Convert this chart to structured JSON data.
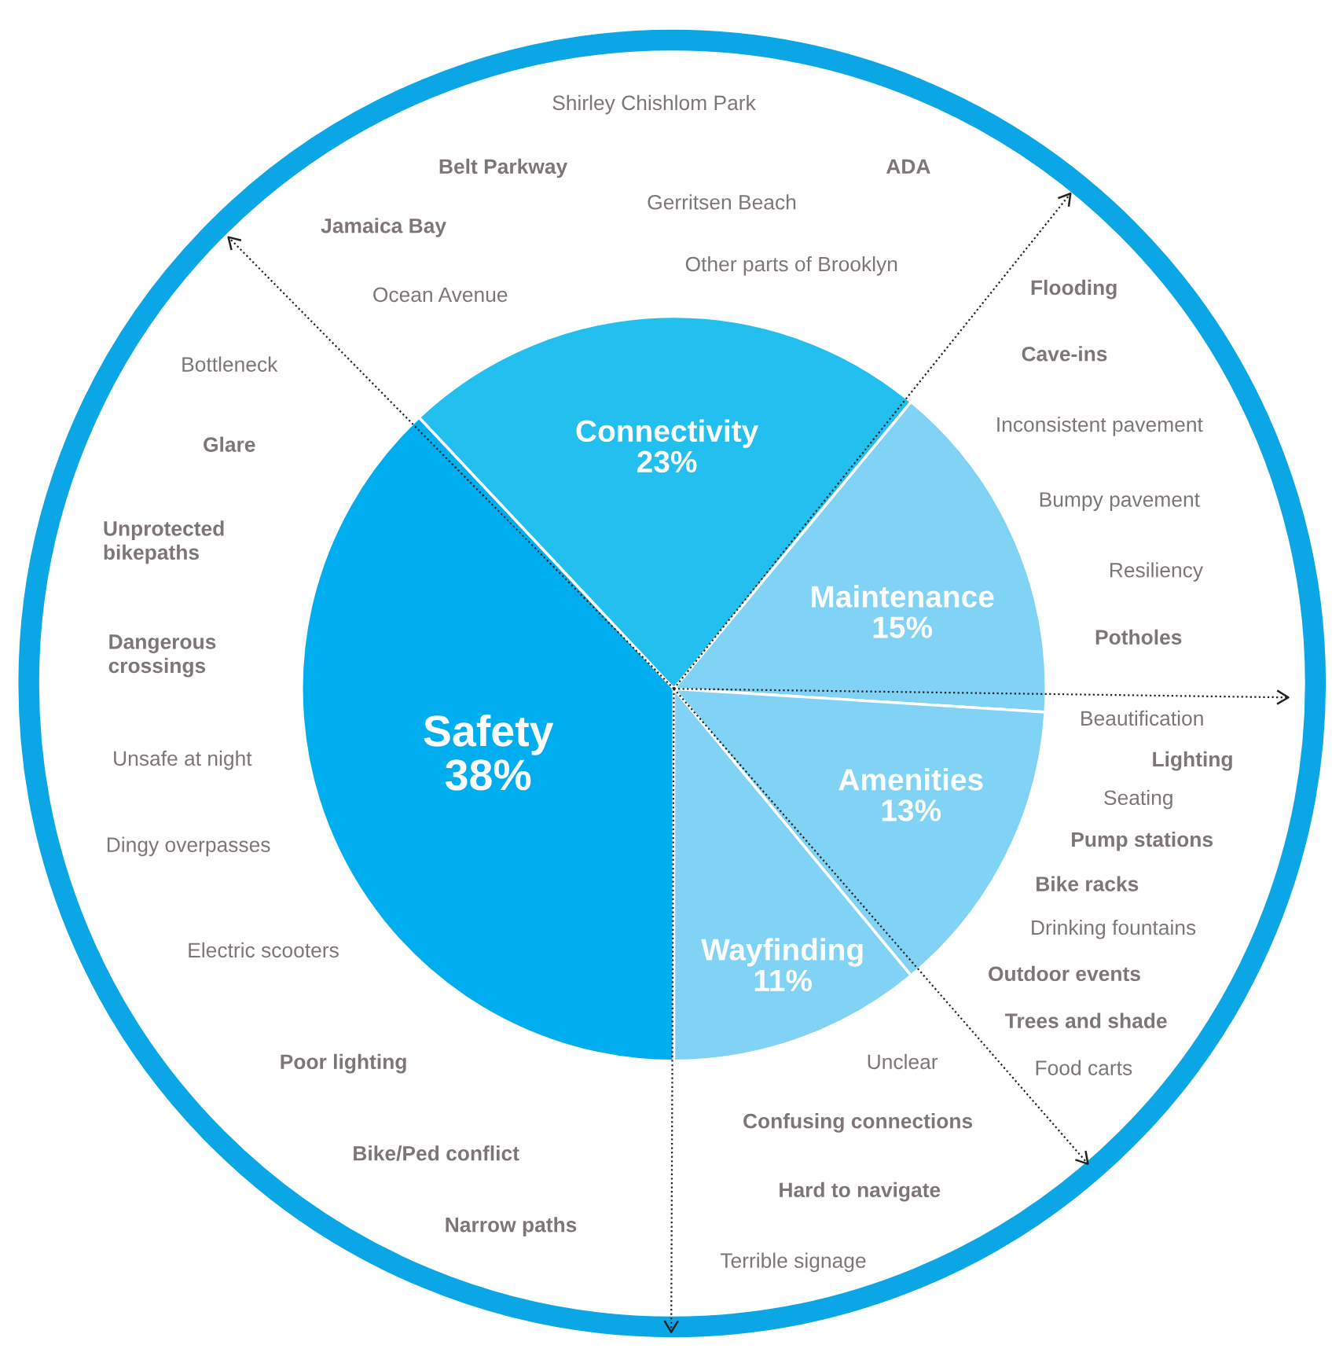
{
  "chart_data": {
    "type": "pie",
    "categories": [
      "Safety",
      "Connectivity",
      "Maintenance",
      "Amenities",
      "Wayfinding"
    ],
    "values": [
      38,
      23,
      15,
      13,
      11
    ],
    "value_labels": [
      "38%",
      "23%",
      "15%",
      "13%",
      "11%"
    ],
    "colors": [
      "#00aeef",
      "#22bfef",
      "#80d3f5",
      "#80d3f5",
      "#80d3f5"
    ],
    "annotations": [
      "Shirley Chishlom Park",
      "Belt Parkway",
      "ADA",
      "Gerritsen Beach",
      "Jamaica Bay",
      "Other parts of Brooklyn",
      "Ocean Avenue",
      "Flooding",
      "Cave-ins",
      "Bottleneck",
      "Inconsistent pavement",
      "Glare",
      "Bumpy pavement",
      "Unprotected\nbikepaths",
      "Resiliency",
      "Dangerous\ncrossings",
      "Potholes",
      "Beautification",
      "Lighting",
      "Unsafe at night",
      "Seating",
      "Pump stations",
      "Dingy overpasses",
      "Bike racks",
      "Drinking fountains",
      "Electric scooters",
      "Outdoor events",
      "Trees and shade",
      "Poor lighting",
      "Unclear",
      "Food carts",
      "Confusing connections",
      "Bike/Ped conflict",
      "Hard to navigate",
      "Narrow paths",
      "Terrible signage"
    ]
  }
}
